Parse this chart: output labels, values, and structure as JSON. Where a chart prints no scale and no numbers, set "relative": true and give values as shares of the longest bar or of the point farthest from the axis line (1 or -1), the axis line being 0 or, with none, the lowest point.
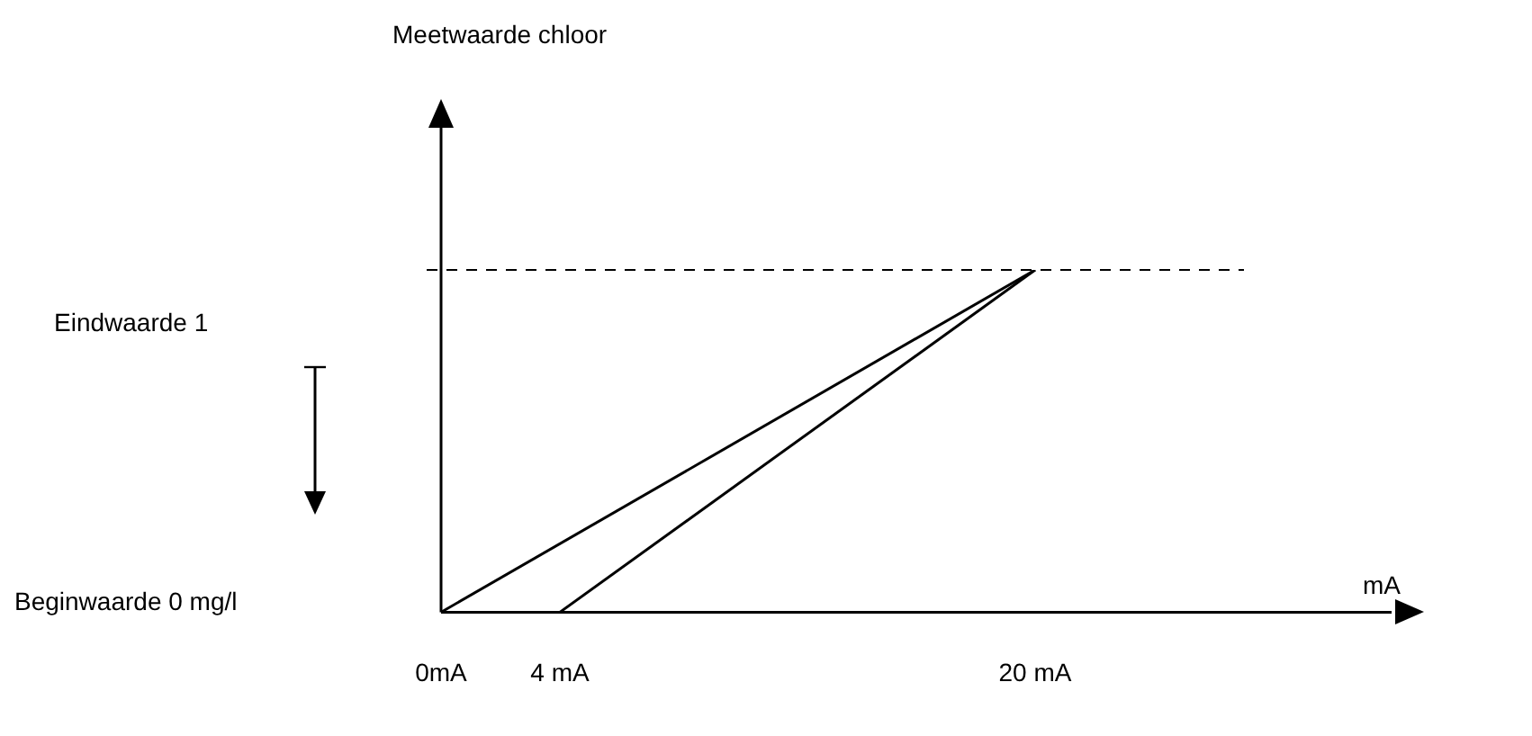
{
  "chart_data": {
    "type": "line",
    "xlabel": "mA",
    "relative": true,
    "xlim": [
      0,
      32
    ],
    "xticks": [
      {
        "value": 0,
        "label": "0mA"
      },
      {
        "value": 4,
        "label": "4 mA"
      },
      {
        "value": 20,
        "label": "20 mA"
      }
    ],
    "series": [
      {
        "color": "#000000",
        "x": [
          0,
          20
        ],
        "values": [
          0,
          1
        ]
      },
      {
        "color": "#000000",
        "x": [
          4,
          20
        ],
        "values": [
          0,
          1
        ]
      }
    ],
    "ref_lines": [
      {
        "axis": "y",
        "value": 1,
        "label": "Eindwaarde 1",
        "color": "#000000",
        "line_style": "dashed"
      }
    ],
    "annotations": [
      "Meetwaarde chloor",
      "Beginwaarde 0 mg/l"
    ],
    "grid": false,
    "legend": false,
    "marker": "none",
    "line_style": "solid",
    "tick_labels": "x"
  }
}
